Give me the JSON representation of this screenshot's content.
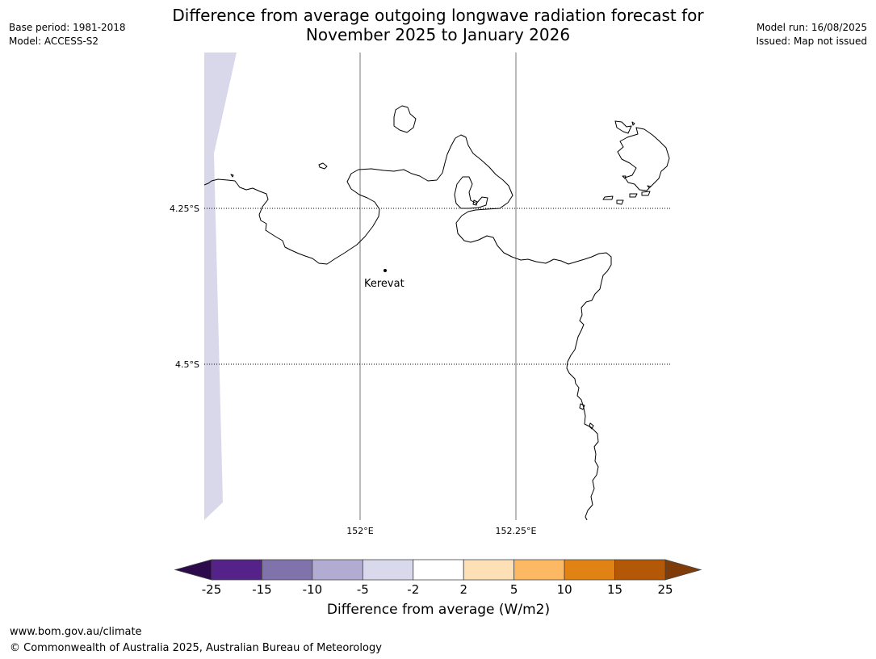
{
  "header": {
    "title_line1": "Difference from average outgoing longwave radiation forecast for",
    "title_line2": "November 2025 to January 2026",
    "base_period": "Base period: 1981-2018",
    "model": "Model: ACCESS-S2",
    "model_run": "Model run: 16/08/2025",
    "issued": "Issued: Map not issued"
  },
  "map": {
    "latitude_labels": [
      "4.25°S",
      "4.5°S"
    ],
    "longitude_labels": [
      "152°E",
      "152.25°E"
    ],
    "place": {
      "name": "Kerevat"
    },
    "anomaly_fill_color": "#d8d8ea",
    "coastline_color": "#000000"
  },
  "colorbar": {
    "title": "Difference from average (W/m2)",
    "tick_labels": [
      "-25",
      "-15",
      "-10",
      "-5",
      "-2",
      "2",
      "5",
      "10",
      "15",
      "25"
    ],
    "bins": [
      {
        "range": "< -25",
        "color": "#2d0a4b"
      },
      {
        "range": "-25 to -15",
        "color": "#542288"
      },
      {
        "range": "-15 to -10",
        "color": "#8073ac"
      },
      {
        "range": "-10 to -5",
        "color": "#b2abd2"
      },
      {
        "range": "-5 to -2",
        "color": "#d8daeb"
      },
      {
        "range": "-2 to 2",
        "color": "#ffffff"
      },
      {
        "range": "2 to 5",
        "color": "#fee0b6"
      },
      {
        "range": "5 to 10",
        "color": "#fdb863"
      },
      {
        "range": "10 to 15",
        "color": "#e08214"
      },
      {
        "range": "15 to 25",
        "color": "#b35806"
      },
      {
        "range": "> 25",
        "color": "#7f3b08"
      }
    ]
  },
  "footer": {
    "url": "www.bom.gov.au/climate",
    "copyright": "© Commonwealth of Australia 2025, Australian Bureau of Meteorology"
  }
}
